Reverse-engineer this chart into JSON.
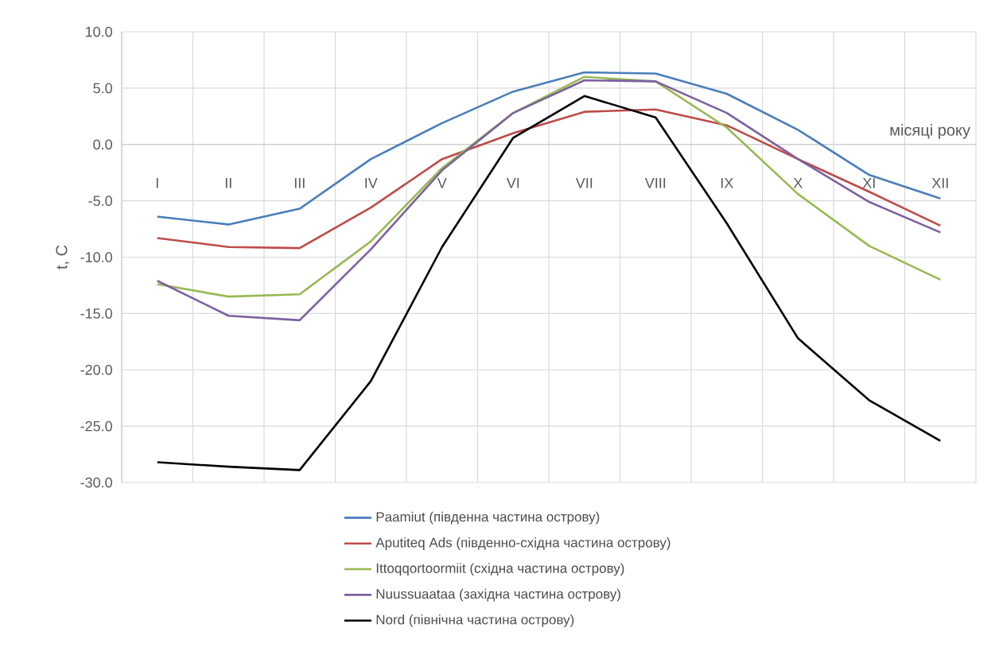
{
  "chart_data": {
    "type": "line",
    "xlabel": "місяці року",
    "ylabel": "t, C",
    "categories": [
      "I",
      "II",
      "III",
      "IV",
      "V",
      "VI",
      "VII",
      "VIII",
      "IX",
      "X",
      "XI",
      "XII"
    ],
    "series": [
      {
        "name": "Paamiut (південна частина острову)",
        "color": "#4a7ebb",
        "values": [
          -6.4,
          -7.1,
          -5.7,
          -1.3,
          1.9,
          4.7,
          6.4,
          6.3,
          4.5,
          1.3,
          -2.7,
          -4.8
        ]
      },
      {
        "name": "Aputiteq Ads (південно-східна частина острову)",
        "color": "#be4b48",
        "values": [
          -8.3,
          -9.1,
          -9.2,
          -5.6,
          -1.3,
          1.0,
          2.9,
          3.1,
          1.7,
          -1.3,
          -4.2,
          -7.2
        ]
      },
      {
        "name": "Ittoqqortoormiit (східна частина острову)",
        "color": "#98b954",
        "values": [
          -12.4,
          -13.5,
          -13.3,
          -8.6,
          -2.1,
          2.8,
          6.0,
          5.6,
          1.5,
          -4.4,
          -9.0,
          -12.0
        ]
      },
      {
        "name": "Nuussuaataa (західна частина острову)",
        "color": "#7d60a0",
        "values": [
          -12.1,
          -15.2,
          -15.6,
          -9.3,
          -2.3,
          2.8,
          5.7,
          5.6,
          2.8,
          -1.3,
          -5.1,
          -7.8
        ]
      },
      {
        "name": "Nord (північна частина острову)",
        "color": "#000000",
        "values": [
          -28.2,
          -28.6,
          -28.9,
          -21.0,
          -9.1,
          0.6,
          4.3,
          2.4,
          -7.0,
          -17.2,
          -22.7,
          -26.3
        ]
      }
    ],
    "ylim": [
      -30,
      10
    ],
    "yticks": [
      {
        "value": -30,
        "label": "-30.0"
      },
      {
        "value": -25,
        "label": "-25.0"
      },
      {
        "value": -20,
        "label": "-20.0"
      },
      {
        "value": -15,
        "label": "-15.0"
      },
      {
        "value": -10,
        "label": "-10.0"
      },
      {
        "value": -5,
        "label": "-5.0"
      },
      {
        "value": 0,
        "label": "0.0"
      },
      {
        "value": 5,
        "label": "5.0"
      },
      {
        "value": 10,
        "label": "10.0"
      }
    ],
    "grid": true,
    "legend": "bottom",
    "marker": "none",
    "line_style": "solid"
  }
}
